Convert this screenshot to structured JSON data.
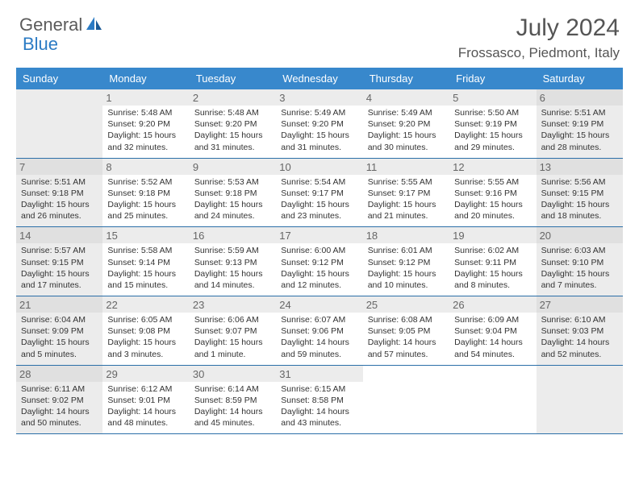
{
  "brand": {
    "part1": "General",
    "part2": "Blue"
  },
  "title": "July 2024",
  "location": "Frossasco, Piedmont, Italy",
  "colors": {
    "header_bg": "#3888cc",
    "week_border": "#2b6fa8",
    "shaded_cell": "#ececec",
    "text": "#333333",
    "title_text": "#555555",
    "brand_gray": "#5b5b5b",
    "brand_blue": "#2b7bc4"
  },
  "day_names": [
    "Sunday",
    "Monday",
    "Tuesday",
    "Wednesday",
    "Thursday",
    "Friday",
    "Saturday"
  ],
  "weeks": [
    [
      {
        "blank": true
      },
      {
        "day": "1",
        "sunrise": "5:48 AM",
        "sunset": "9:20 PM",
        "daylight": "15 hours and 32 minutes."
      },
      {
        "day": "2",
        "sunrise": "5:48 AM",
        "sunset": "9:20 PM",
        "daylight": "15 hours and 31 minutes."
      },
      {
        "day": "3",
        "sunrise": "5:49 AM",
        "sunset": "9:20 PM",
        "daylight": "15 hours and 31 minutes."
      },
      {
        "day": "4",
        "sunrise": "5:49 AM",
        "sunset": "9:20 PM",
        "daylight": "15 hours and 30 minutes."
      },
      {
        "day": "5",
        "sunrise": "5:50 AM",
        "sunset": "9:19 PM",
        "daylight": "15 hours and 29 minutes."
      },
      {
        "day": "6",
        "sunrise": "5:51 AM",
        "sunset": "9:19 PM",
        "daylight": "15 hours and 28 minutes."
      }
    ],
    [
      {
        "day": "7",
        "sunrise": "5:51 AM",
        "sunset": "9:18 PM",
        "daylight": "15 hours and 26 minutes."
      },
      {
        "day": "8",
        "sunrise": "5:52 AM",
        "sunset": "9:18 PM",
        "daylight": "15 hours and 25 minutes."
      },
      {
        "day": "9",
        "sunrise": "5:53 AM",
        "sunset": "9:18 PM",
        "daylight": "15 hours and 24 minutes."
      },
      {
        "day": "10",
        "sunrise": "5:54 AM",
        "sunset": "9:17 PM",
        "daylight": "15 hours and 23 minutes."
      },
      {
        "day": "11",
        "sunrise": "5:55 AM",
        "sunset": "9:17 PM",
        "daylight": "15 hours and 21 minutes."
      },
      {
        "day": "12",
        "sunrise": "5:55 AM",
        "sunset": "9:16 PM",
        "daylight": "15 hours and 20 minutes."
      },
      {
        "day": "13",
        "sunrise": "5:56 AM",
        "sunset": "9:15 PM",
        "daylight": "15 hours and 18 minutes."
      }
    ],
    [
      {
        "day": "14",
        "sunrise": "5:57 AM",
        "sunset": "9:15 PM",
        "daylight": "15 hours and 17 minutes."
      },
      {
        "day": "15",
        "sunrise": "5:58 AM",
        "sunset": "9:14 PM",
        "daylight": "15 hours and 15 minutes."
      },
      {
        "day": "16",
        "sunrise": "5:59 AM",
        "sunset": "9:13 PM",
        "daylight": "15 hours and 14 minutes."
      },
      {
        "day": "17",
        "sunrise": "6:00 AM",
        "sunset": "9:12 PM",
        "daylight": "15 hours and 12 minutes."
      },
      {
        "day": "18",
        "sunrise": "6:01 AM",
        "sunset": "9:12 PM",
        "daylight": "15 hours and 10 minutes."
      },
      {
        "day": "19",
        "sunrise": "6:02 AM",
        "sunset": "9:11 PM",
        "daylight": "15 hours and 8 minutes."
      },
      {
        "day": "20",
        "sunrise": "6:03 AM",
        "sunset": "9:10 PM",
        "daylight": "15 hours and 7 minutes."
      }
    ],
    [
      {
        "day": "21",
        "sunrise": "6:04 AM",
        "sunset": "9:09 PM",
        "daylight": "15 hours and 5 minutes."
      },
      {
        "day": "22",
        "sunrise": "6:05 AM",
        "sunset": "9:08 PM",
        "daylight": "15 hours and 3 minutes."
      },
      {
        "day": "23",
        "sunrise": "6:06 AM",
        "sunset": "9:07 PM",
        "daylight": "15 hours and 1 minute."
      },
      {
        "day": "24",
        "sunrise": "6:07 AM",
        "sunset": "9:06 PM",
        "daylight": "14 hours and 59 minutes."
      },
      {
        "day": "25",
        "sunrise": "6:08 AM",
        "sunset": "9:05 PM",
        "daylight": "14 hours and 57 minutes."
      },
      {
        "day": "26",
        "sunrise": "6:09 AM",
        "sunset": "9:04 PM",
        "daylight": "14 hours and 54 minutes."
      },
      {
        "day": "27",
        "sunrise": "6:10 AM",
        "sunset": "9:03 PM",
        "daylight": "14 hours and 52 minutes."
      }
    ],
    [
      {
        "day": "28",
        "sunrise": "6:11 AM",
        "sunset": "9:02 PM",
        "daylight": "14 hours and 50 minutes."
      },
      {
        "day": "29",
        "sunrise": "6:12 AM",
        "sunset": "9:01 PM",
        "daylight": "14 hours and 48 minutes."
      },
      {
        "day": "30",
        "sunrise": "6:14 AM",
        "sunset": "8:59 PM",
        "daylight": "14 hours and 45 minutes."
      },
      {
        "day": "31",
        "sunrise": "6:15 AM",
        "sunset": "8:58 PM",
        "daylight": "14 hours and 43 minutes."
      },
      {
        "blank": true
      },
      {
        "blank": true
      },
      {
        "blank": true
      }
    ]
  ],
  "labels": {
    "sunrise": "Sunrise: ",
    "sunset": "Sunset: ",
    "daylight": "Daylight: "
  }
}
